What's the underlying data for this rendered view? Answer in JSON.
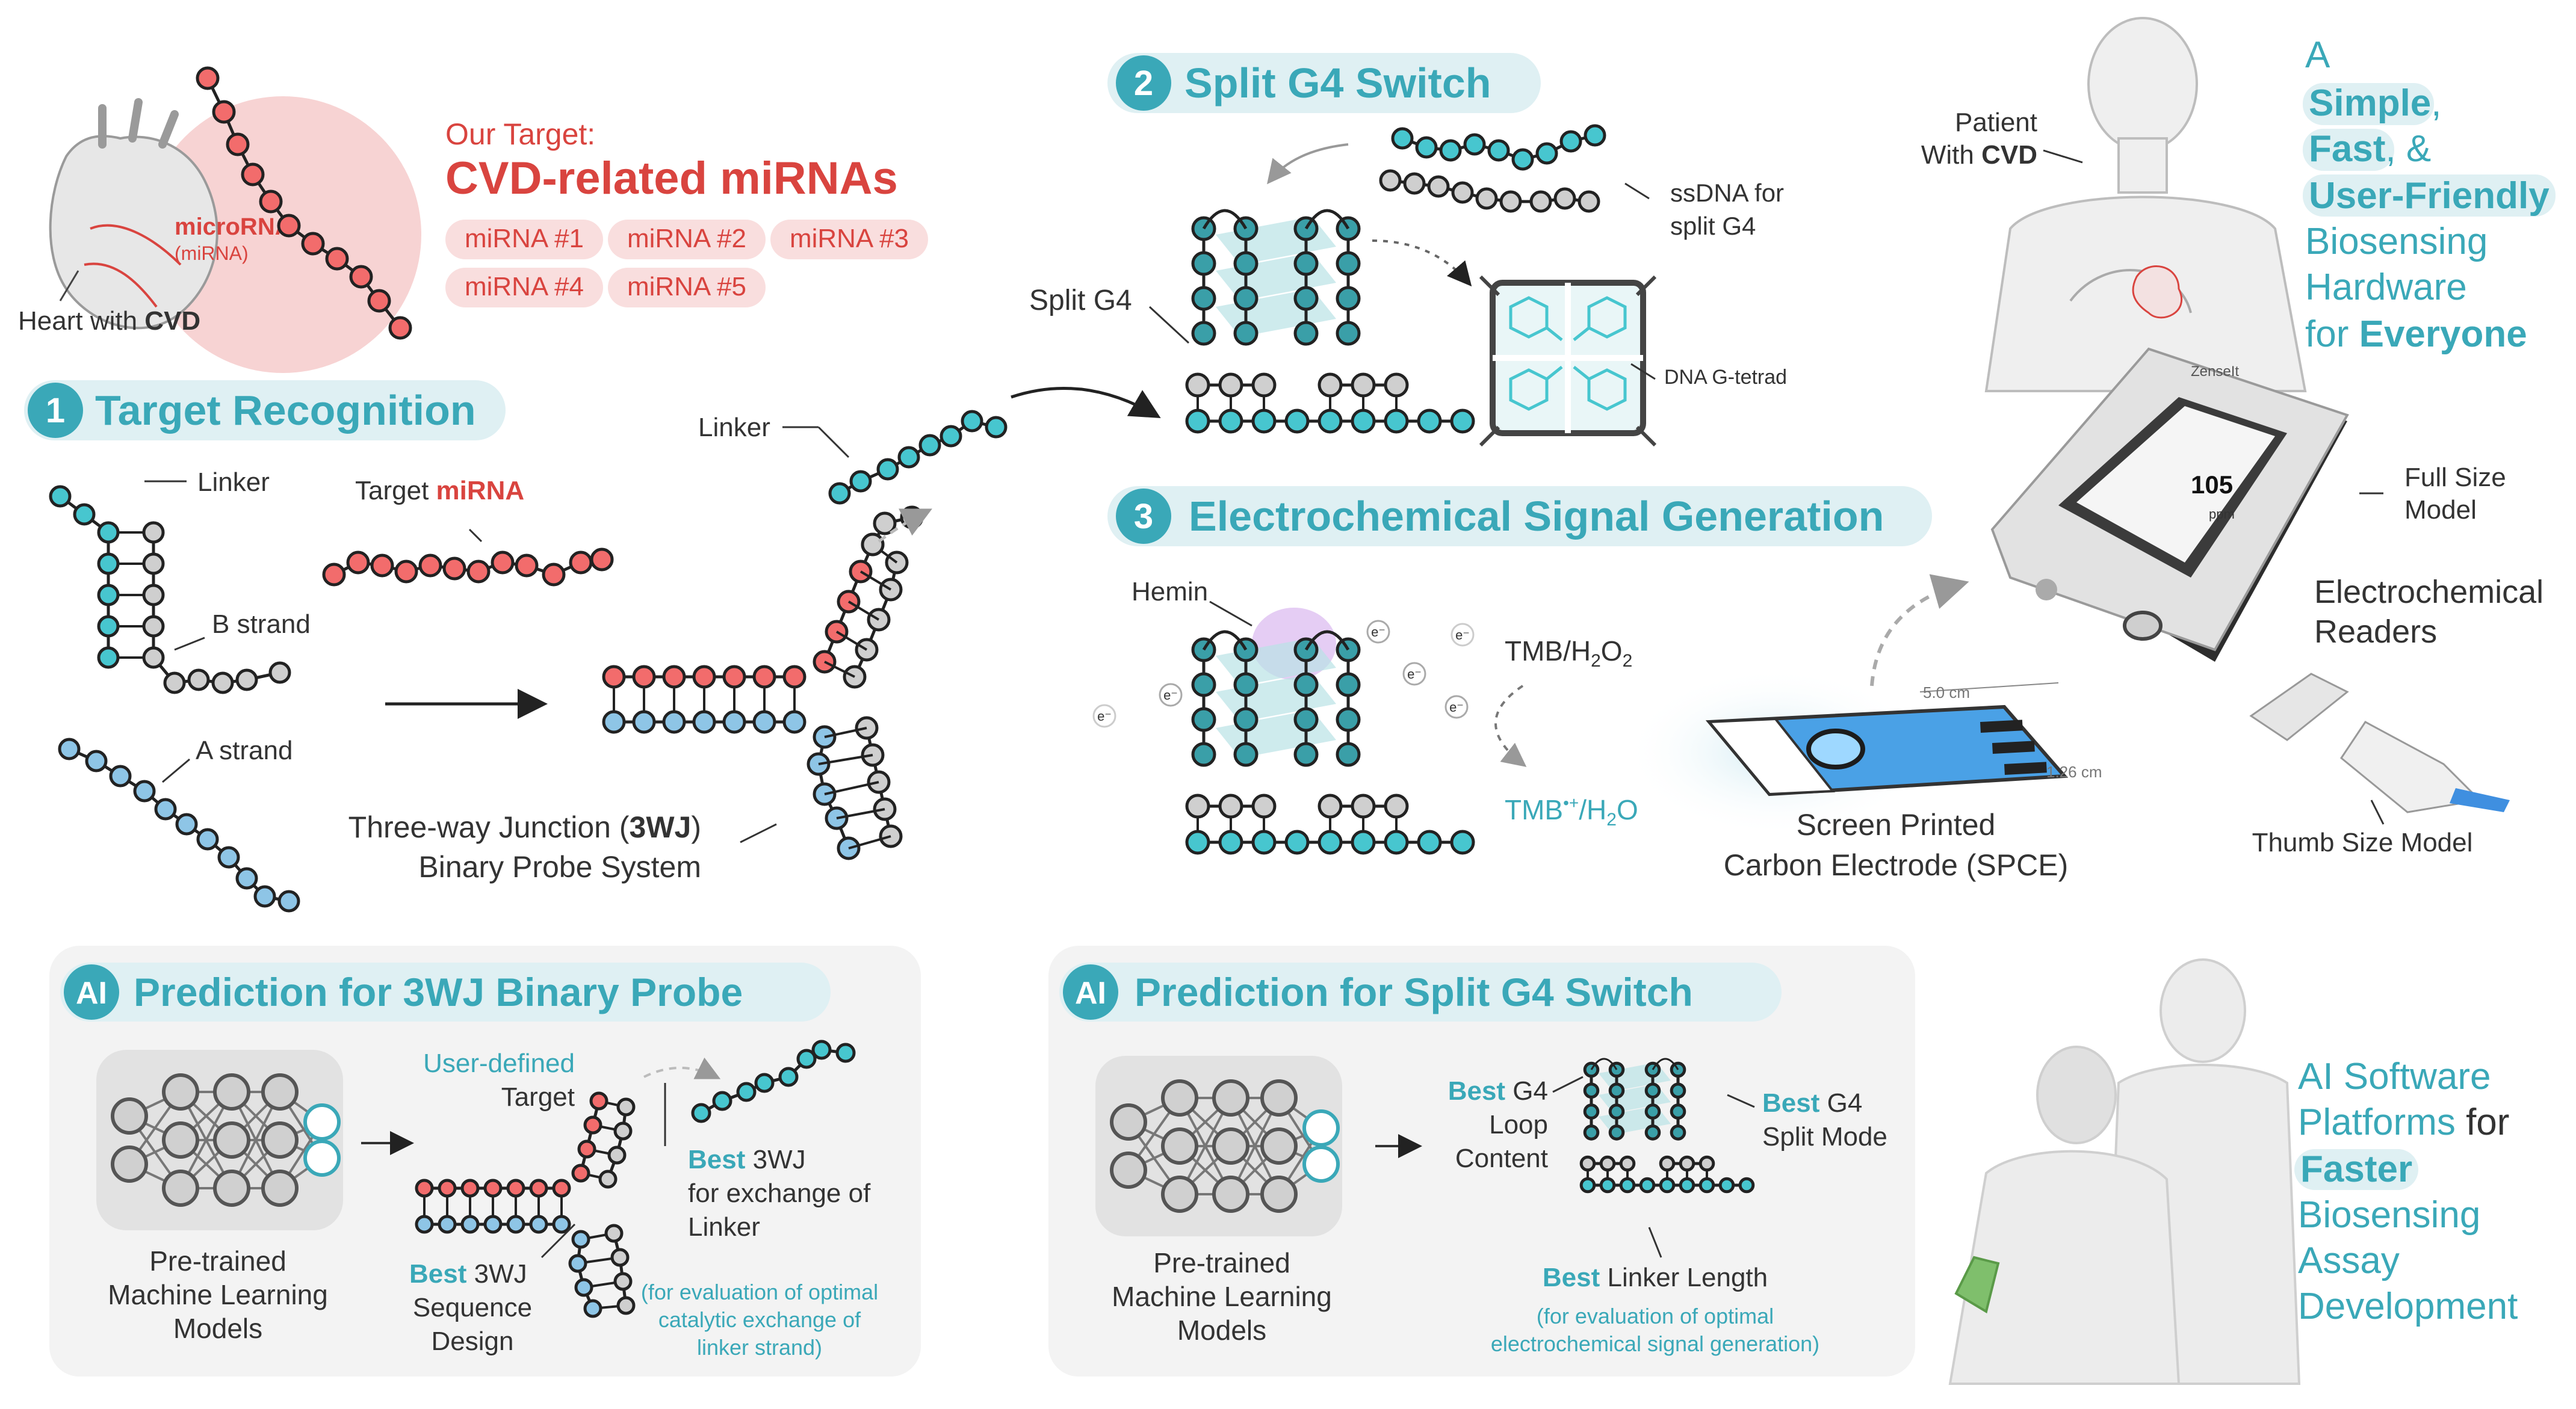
{
  "colors": {
    "teal": "#3aa8b8",
    "teal_light": "#dff0f3",
    "red": "#d9443f",
    "pink_bg": "#f7d3d3",
    "pill_bg": "#f9dede",
    "panel_bg": "#f3f3f3",
    "strand_teal": "#47c6cf",
    "strand_red": "#f26c6c",
    "strand_blue": "#8ec5e6",
    "strand_gray": "#cfcfcf"
  },
  "target": {
    "title_line": "Our Target:",
    "heading": "CVD-related miRNAs",
    "mirna_label": "microRNA",
    "mirna_sub": "(miRNA)",
    "heart_label_prefix": "Heart with ",
    "heart_label_bold": "CVD",
    "pills": [
      "miRNA #1",
      "miRNA #2",
      "miRNA #3",
      "miRNA #4",
      "miRNA #5"
    ]
  },
  "step1": {
    "number": "1",
    "title": "Target Recognition",
    "linker": "Linker",
    "b_strand": "B strand",
    "a_strand": "A strand",
    "target_prefix": "Target ",
    "target_bold": "miRNA",
    "linker2": "Linker",
    "junction_line1_pre": "Three-way Junction (",
    "junction_line1_bold": "3WJ",
    "junction_line1_post": ")",
    "junction_line2": "Binary Probe System"
  },
  "step2": {
    "number": "2",
    "title": "Split G4 Switch",
    "split_g4": "Split G4",
    "ssdna_line1": "ssDNA for",
    "ssdna_line2": "split G4",
    "tetrad": "DNA G-tetrad"
  },
  "step3": {
    "number": "3",
    "title": "Electrochemical Signal Generation",
    "hemin": "Hemin",
    "tmb_h2o2_main": "TMB/H",
    "tmb_h2o2_sub1": "2",
    "tmb_h2o2_o": "O",
    "tmb_h2o2_sub2": "2",
    "tmb_ox_main": "TMB",
    "tmb_ox_sup": "•+",
    "tmb_ox_post": "/H",
    "tmb_ox_sub": "2",
    "tmb_ox_end": "O",
    "electron": "e⁻",
    "dim_length": "5.0 cm",
    "dim_width": "1.26 cm",
    "spce_line1": "Screen Printed",
    "spce_line2": "Carbon Electrode (SPCE)"
  },
  "hardware": {
    "patient_line1": "Patient",
    "patient_line2_pre": "With ",
    "patient_line2_bold": "CVD",
    "headline_a": "A",
    "headline_simple": "Simple",
    "headline_comma": ",",
    "headline_fast": "Fast",
    "headline_amp": ", &",
    "headline_friendly": "User-Friendly",
    "headline_biosensing": "Biosensing",
    "headline_hardware": "Hardware",
    "headline_for": "for ",
    "headline_everyone": "Everyone",
    "full_size_line1": "Full Size",
    "full_size_line2": "Model",
    "readers_line1": "Electrochemical",
    "readers_line2": "Readers",
    "thumb": "Thumb Size Model",
    "device_brand": "ZenseIt",
    "device_value": "105",
    "device_unit": "ppm"
  },
  "ai1": {
    "badge": "AI",
    "title": "Prediction for 3WJ Binary Probe",
    "model_line1": "Pre-trained",
    "model_line2": "Machine Learning",
    "model_line3": "Models",
    "user_defined": "User-defined",
    "target": "Target",
    "best_exchange_bold": "Best",
    "best_exchange_rest": " 3WJ",
    "best_exchange_line2": "for exchange of",
    "best_exchange_line3": "Linker",
    "best_seq_bold": "Best",
    "best_seq_rest": " 3WJ",
    "best_seq_line2": "Sequence",
    "best_seq_line3": "Design",
    "note_line1": "(for evaluation of optimal",
    "note_line2": "catalytic exchange of",
    "note_line3": "linker strand)"
  },
  "ai2": {
    "badge": "AI",
    "title": "Prediction for Split G4 Switch",
    "model_line1": "Pre-trained",
    "model_line2": "Machine Learning",
    "model_line3": "Models",
    "loop_bold": "Best",
    "loop_rest": " G4",
    "loop_line2": "Loop",
    "loop_line3": "Content",
    "split_bold": "Best",
    "split_rest": " G4",
    "split_line2": "Split Mode",
    "linker_bold": "Best",
    "linker_rest": " Linker Length",
    "note_line1": "(for evaluation of optimal",
    "note_line2": "electrochemical signal generation)"
  },
  "software": {
    "line1": "AI Software",
    "line2_pre": "Platforms",
    "line2_post": " for",
    "line3": "Faster",
    "line4": "Biosensing",
    "line5": "Assay",
    "line6": "Development"
  }
}
